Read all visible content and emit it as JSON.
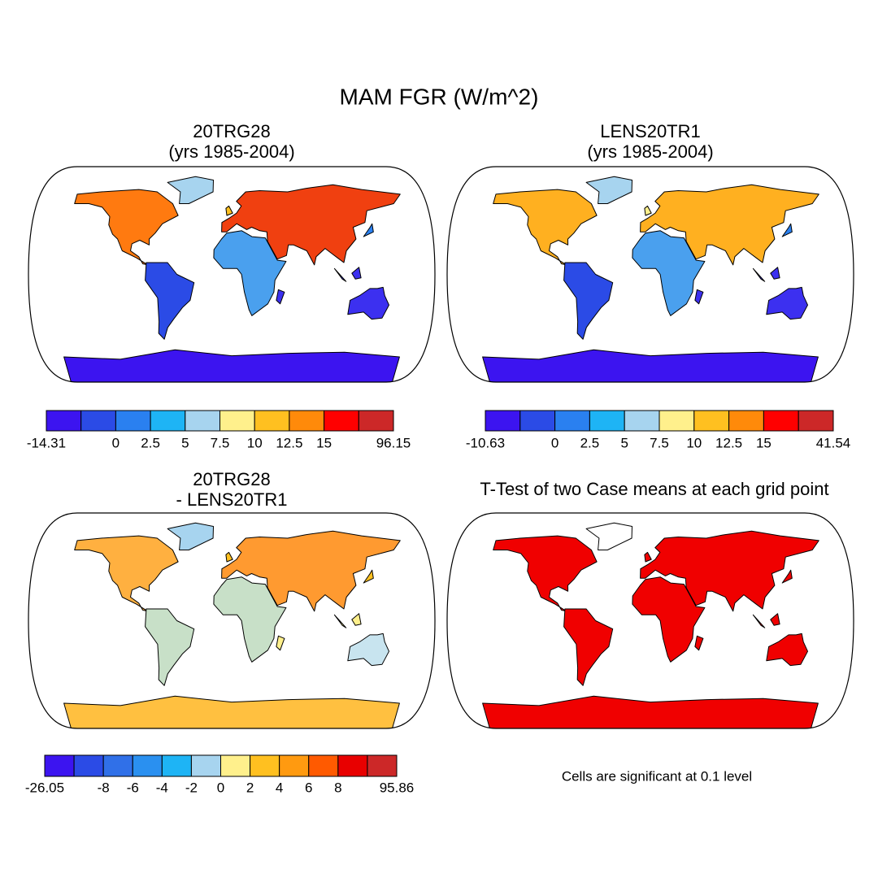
{
  "title": "MAM FGR (W/m^2)",
  "panels": [
    {
      "title": [
        "20TRG28",
        "(yrs 1985-2004)"
      ],
      "colorbar": {
        "colors": [
          "#3c14f0",
          "#2b4be6",
          "#2a80f0",
          "#1eb4f5",
          "#a7d4ef",
          "#fff08c",
          "#ffc020",
          "#ff8a0a",
          "#ff0000",
          "#cc2828"
        ],
        "labels": [
          "-14.31",
          null,
          "0",
          "2.5",
          "5",
          "7.5",
          "10",
          "12.5",
          "15",
          null,
          "96.15"
        ]
      }
    },
    {
      "title": [
        "LENS20TR1",
        "(yrs 1985-2004)"
      ],
      "colorbar": {
        "colors": [
          "#3c14f0",
          "#2b4be6",
          "#2a80f0",
          "#1eb4f5",
          "#a7d4ef",
          "#fff08c",
          "#ffc020",
          "#ff8a0a",
          "#ff0000",
          "#cc2828"
        ],
        "labels": [
          "-10.63",
          null,
          "0",
          "2.5",
          "5",
          "7.5",
          "10",
          "12.5",
          "15",
          null,
          "41.54"
        ]
      }
    },
    {
      "title": [
        "20TRG28",
        "- LENS20TR1"
      ],
      "colorbar": {
        "colors": [
          "#3c14f0",
          "#2b4be6",
          "#3070e8",
          "#2a90f0",
          "#1eb4f5",
          "#a7d4ef",
          "#fff08c",
          "#ffc020",
          "#ff9a10",
          "#ff5a00",
          "#e80000",
          "#cc2828"
        ],
        "labels": [
          "-26.05",
          null,
          "-8",
          "-6",
          "-4",
          "-2",
          "0",
          "2",
          "4",
          "6",
          "8",
          null,
          "95.86"
        ]
      }
    },
    {
      "title": [
        "T-Test of two Case means at each grid point"
      ],
      "note": "Cells are significant at 0.1 level"
    }
  ]
}
